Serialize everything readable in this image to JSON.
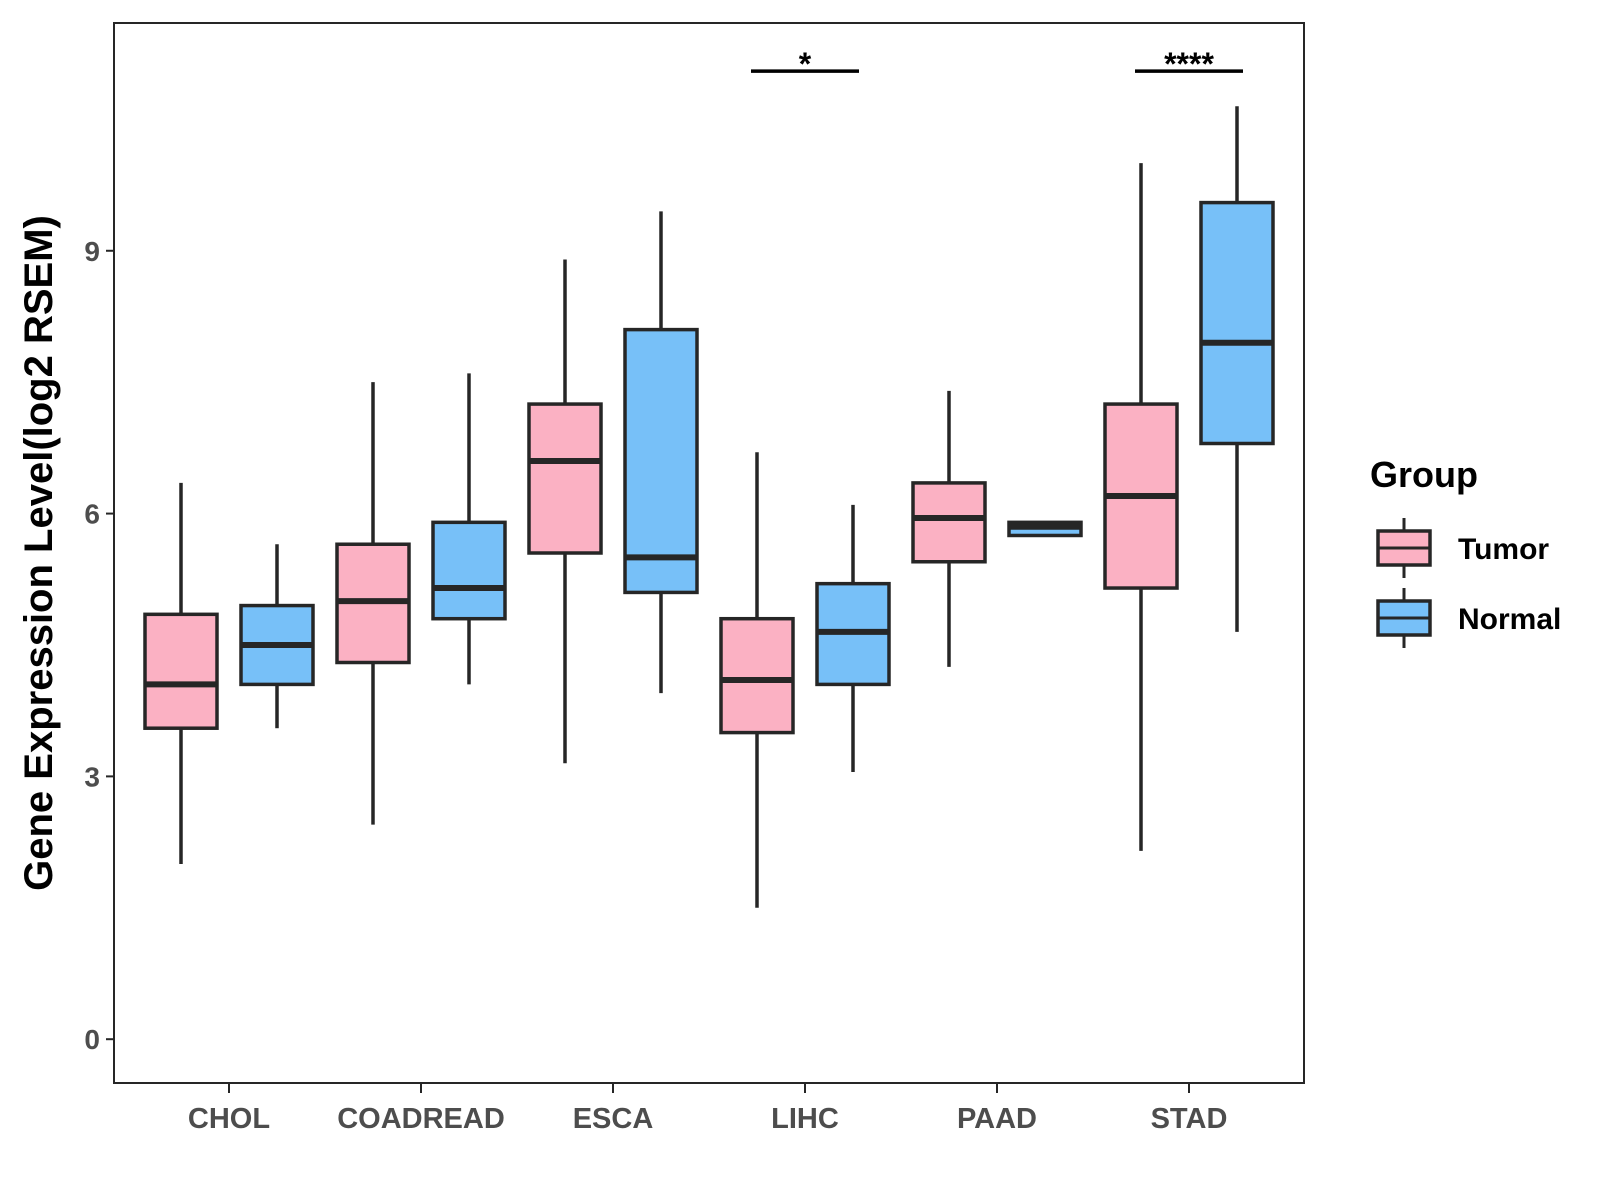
{
  "chart_data": {
    "type": "boxplot",
    "title": "",
    "xlabel": "",
    "ylabel": "Gene Expression Level(log2 RSEM)",
    "ylim": [
      -0.5,
      11.6
    ],
    "yticks": [
      0,
      3,
      6,
      9
    ],
    "grid": false,
    "legend": {
      "title": "Group",
      "position": "right",
      "entries": [
        {
          "name": "Tumor",
          "color": "#FBB1C3"
        },
        {
          "name": "Normal",
          "color": "#77C0F8"
        }
      ]
    },
    "categories": [
      "CHOL",
      "COADREAD",
      "ESCA",
      "LIHC",
      "PAAD",
      "STAD"
    ],
    "series": [
      {
        "name": "Tumor",
        "color": "#FBB1C3",
        "boxes": [
          {
            "min": 2.0,
            "q1": 3.55,
            "median": 4.05,
            "q3": 4.85,
            "max": 6.35
          },
          {
            "min": 2.45,
            "q1": 4.3,
            "median": 5.0,
            "q3": 5.65,
            "max": 7.5
          },
          {
            "min": 3.15,
            "q1": 5.55,
            "median": 6.6,
            "q3": 7.25,
            "max": 8.9
          },
          {
            "min": 1.5,
            "q1": 3.5,
            "median": 4.1,
            "q3": 4.8,
            "max": 6.7
          },
          {
            "min": 4.25,
            "q1": 5.45,
            "median": 5.95,
            "q3": 6.35,
            "max": 7.4
          },
          {
            "min": 2.15,
            "q1": 5.15,
            "median": 6.2,
            "q3": 7.25,
            "max": 10.0
          }
        ]
      },
      {
        "name": "Normal",
        "color": "#77C0F8",
        "boxes": [
          {
            "min": 3.55,
            "q1": 4.05,
            "median": 4.5,
            "q3": 4.95,
            "max": 5.65
          },
          {
            "min": 4.05,
            "q1": 4.8,
            "median": 5.15,
            "q3": 5.9,
            "max": 7.6
          },
          {
            "min": 3.95,
            "q1": 5.1,
            "median": 5.5,
            "q3": 8.1,
            "max": 9.45
          },
          {
            "min": 3.05,
            "q1": 4.05,
            "median": 4.65,
            "q3": 5.2,
            "max": 6.1
          },
          {
            "min": 5.75,
            "q1": 5.75,
            "median": 5.85,
            "q3": 5.9,
            "max": 5.9
          },
          {
            "min": 4.65,
            "q1": 6.8,
            "median": 7.95,
            "q3": 9.55,
            "max": 10.65
          }
        ]
      }
    ],
    "annotations": [
      {
        "category": "LIHC",
        "label": "*",
        "y": 11.05
      },
      {
        "category": "STAD",
        "label": "****",
        "y": 11.05
      }
    ]
  },
  "colors": {
    "box_outline": "#262626",
    "axis": "#262626"
  }
}
